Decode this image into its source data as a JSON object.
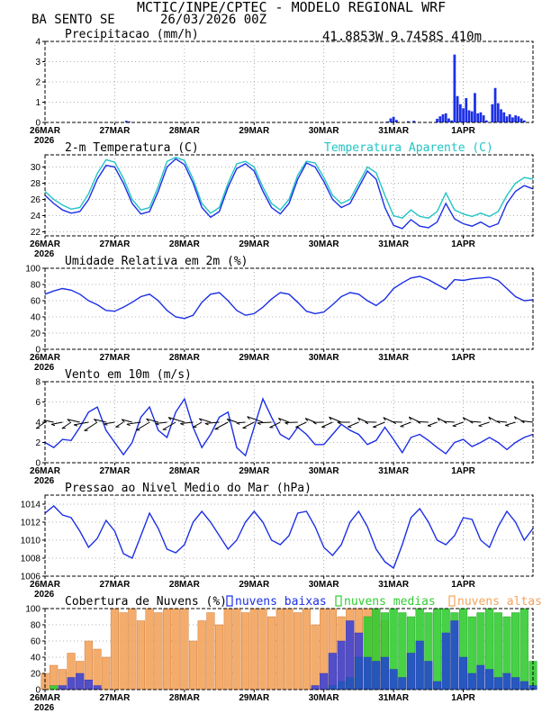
{
  "header": {
    "org_line": "MCTIC/INPE/CPTEC - MODELO REGIONAL WRF",
    "location": "BA SENTO SE",
    "run": "26/03/2026 00Z",
    "coords": "41.8853W 9.7458S 410m"
  },
  "colors": {
    "blue": "#1c2fe6",
    "cyan": "#22c4c4",
    "orange": "#f3a35c",
    "green": "#33cc33",
    "navy": "#2d2bbf",
    "header_orange": "#ee8822"
  },
  "x_axis": {
    "days": [
      "26MAR",
      "27MAR",
      "28MAR",
      "29MAR",
      "30MAR",
      "31MAR",
      "1APR"
    ],
    "year": "2026",
    "hours_total": 168
  },
  "chart_data": [
    {
      "id": "precip",
      "type": "bar",
      "title": "Precipitacao (mm/h)",
      "ylim": [
        0,
        4
      ],
      "yticks": [
        0,
        1,
        2,
        3,
        4
      ],
      "x_hours": [
        28,
        29,
        118,
        119,
        120,
        121,
        125,
        127,
        135,
        136,
        137,
        138,
        139,
        140,
        141,
        142,
        143,
        144,
        145,
        146,
        147,
        148,
        149,
        150,
        151,
        152,
        154,
        155,
        156,
        157,
        158,
        159,
        160,
        161,
        162,
        163,
        164,
        165
      ],
      "values": [
        0.08,
        0.05,
        0.05,
        0.2,
        0.28,
        0.12,
        0.06,
        0.08,
        0.18,
        0.3,
        0.4,
        0.45,
        0.2,
        0.1,
        3.35,
        1.3,
        0.9,
        0.7,
        1.2,
        0.6,
        0.55,
        1.45,
        0.45,
        0.5,
        0.35,
        0.1,
        0.9,
        1.7,
        0.95,
        0.65,
        0.5,
        0.3,
        0.4,
        0.25,
        0.35,
        0.3,
        0.2,
        0.1
      ]
    },
    {
      "id": "temp",
      "type": "line",
      "title": "2-m Temperatura (C)",
      "ylim": [
        21.5,
        31.5
      ],
      "yticks": [
        22,
        24,
        26,
        28,
        30
      ],
      "series": [
        {
          "name": "2-m Temperatura (C)",
          "x_hours": [
            0,
            3,
            6,
            9,
            12,
            15,
            18,
            21,
            24,
            27,
            30,
            33,
            36,
            39,
            42,
            45,
            48,
            51,
            54,
            57,
            60,
            63,
            66,
            69,
            72,
            75,
            78,
            81,
            84,
            87,
            90,
            93,
            96,
            99,
            102,
            105,
            108,
            111,
            114,
            117,
            120,
            123,
            126,
            129,
            132,
            135,
            138,
            141,
            144,
            147,
            150,
            153,
            156,
            159,
            162,
            165,
            168
          ],
          "values": [
            26.5,
            25.5,
            24.7,
            24.3,
            24.5,
            26.0,
            28.5,
            30.2,
            30.0,
            28.0,
            25.5,
            24.2,
            24.5,
            27.0,
            30.0,
            31.0,
            30.3,
            28.0,
            25.0,
            23.8,
            24.5,
            27.5,
            29.8,
            30.4,
            29.5,
            27.0,
            25.0,
            24.2,
            25.5,
            28.5,
            30.5,
            30.0,
            28.2,
            26.0,
            25.0,
            25.5,
            27.5,
            29.5,
            28.5,
            25.0,
            22.8,
            22.4,
            23.5,
            22.7,
            22.5,
            23.2,
            25.5,
            23.6,
            23.0,
            22.7,
            23.2,
            22.6,
            23.0,
            25.5,
            27.0,
            27.7,
            27.3
          ]
        },
        {
          "name": "Temperatura Aparente (C)",
          "x_hours": [
            0,
            3,
            6,
            9,
            12,
            15,
            18,
            21,
            24,
            27,
            30,
            33,
            36,
            39,
            42,
            45,
            48,
            51,
            54,
            57,
            60,
            63,
            66,
            69,
            72,
            75,
            78,
            81,
            84,
            87,
            90,
            93,
            96,
            99,
            102,
            105,
            108,
            111,
            114,
            117,
            120,
            123,
            126,
            129,
            132,
            135,
            138,
            141,
            144,
            147,
            150,
            153,
            156,
            159,
            162,
            165,
            168
          ],
          "values": [
            27.0,
            26.0,
            25.3,
            24.8,
            25.0,
            26.7,
            29.2,
            30.9,
            30.6,
            28.6,
            26.0,
            24.7,
            25.0,
            27.6,
            30.7,
            31.2,
            30.8,
            28.5,
            25.5,
            24.3,
            25.0,
            28.0,
            30.4,
            30.7,
            30.0,
            27.5,
            25.5,
            24.7,
            26.0,
            29.0,
            30.7,
            30.5,
            28.7,
            26.5,
            25.5,
            26.0,
            28.0,
            30.0,
            29.3,
            26.5,
            24.0,
            23.7,
            24.7,
            23.9,
            23.7,
            24.5,
            26.8,
            24.7,
            24.2,
            23.9,
            24.3,
            23.9,
            24.5,
            26.5,
            28.0,
            28.7,
            28.5
          ]
        }
      ]
    },
    {
      "id": "rh",
      "type": "line",
      "title": "Umidade Relativa em 2m (%)",
      "ylim": [
        0,
        100
      ],
      "yticks": [
        0,
        20,
        40,
        60,
        80,
        100
      ],
      "series": [
        {
          "name": "Umidade Relativa em 2m (%)",
          "x_hours": [
            0,
            3,
            6,
            9,
            12,
            15,
            18,
            21,
            24,
            27,
            30,
            33,
            36,
            39,
            42,
            45,
            48,
            51,
            54,
            57,
            60,
            63,
            66,
            69,
            72,
            75,
            78,
            81,
            84,
            87,
            90,
            93,
            96,
            99,
            102,
            105,
            108,
            111,
            114,
            117,
            120,
            123,
            126,
            129,
            132,
            135,
            138,
            141,
            144,
            147,
            150,
            153,
            156,
            159,
            162,
            165,
            168
          ],
          "values": [
            68,
            72,
            75,
            73,
            68,
            60,
            55,
            48,
            47,
            52,
            58,
            65,
            68,
            60,
            48,
            40,
            38,
            42,
            58,
            68,
            70,
            60,
            48,
            42,
            44,
            52,
            62,
            70,
            68,
            58,
            47,
            44,
            46,
            55,
            65,
            70,
            68,
            60,
            54,
            62,
            75,
            82,
            88,
            90,
            86,
            80,
            74,
            86,
            85,
            87,
            88,
            89,
            85,
            75,
            65,
            60,
            61
          ]
        }
      ]
    },
    {
      "id": "wind",
      "type": "line",
      "title": "Vento em 10m (m/s)",
      "ylim": [
        0,
        8
      ],
      "yticks": [
        0,
        2,
        4,
        6,
        8
      ],
      "barbs": "direction arrows drawn along y=4",
      "series": [
        {
          "name": "Vento em 10m (m/s)",
          "x_hours": [
            0,
            3,
            6,
            9,
            12,
            15,
            18,
            21,
            24,
            27,
            30,
            33,
            36,
            39,
            42,
            45,
            48,
            51,
            54,
            57,
            60,
            63,
            66,
            69,
            72,
            75,
            78,
            81,
            84,
            87,
            90,
            93,
            96,
            99,
            102,
            105,
            108,
            111,
            114,
            117,
            120,
            123,
            126,
            129,
            132,
            135,
            138,
            141,
            144,
            147,
            150,
            153,
            156,
            159,
            162,
            165,
            168
          ],
          "values": [
            2.0,
            1.5,
            2.3,
            2.2,
            3.5,
            5.0,
            5.5,
            3.2,
            2.0,
            0.8,
            2.0,
            4.5,
            5.5,
            3.2,
            2.5,
            5.0,
            6.3,
            3.5,
            1.5,
            2.8,
            4.5,
            5.0,
            1.5,
            0.7,
            3.5,
            6.3,
            4.5,
            2.8,
            2.3,
            3.5,
            2.8,
            1.8,
            1.8,
            2.8,
            3.8,
            3.2,
            2.8,
            1.8,
            2.2,
            3.5,
            2.3,
            1.0,
            2.5,
            2.8,
            2.2,
            1.5,
            0.9,
            2.0,
            2.3,
            1.6,
            2.0,
            2.5,
            2.0,
            1.3,
            2.0,
            2.5,
            2.8
          ]
        }
      ]
    },
    {
      "id": "slp",
      "type": "line",
      "title": "Pressao ao Nivel Medio do Mar (hPa)",
      "ylim": [
        1006,
        1015
      ],
      "yticks": [
        1006,
        1008,
        1010,
        1012,
        1014
      ],
      "series": [
        {
          "name": "Pressao ao Nivel Medio do Mar (hPa)",
          "x_hours": [
            0,
            3,
            6,
            9,
            12,
            15,
            18,
            21,
            24,
            27,
            30,
            33,
            36,
            39,
            42,
            45,
            48,
            51,
            54,
            57,
            60,
            63,
            66,
            69,
            72,
            75,
            78,
            81,
            84,
            87,
            90,
            93,
            96,
            99,
            102,
            105,
            108,
            111,
            114,
            117,
            120,
            123,
            126,
            129,
            132,
            135,
            138,
            141,
            144,
            147,
            150,
            153,
            156,
            159,
            162,
            165,
            168
          ],
          "values": [
            1013,
            1013.8,
            1012.8,
            1012.5,
            1011,
            1009.2,
            1010.2,
            1012.2,
            1011,
            1008.5,
            1008,
            1010.5,
            1013,
            1011.3,
            1009,
            1008.6,
            1009.5,
            1012,
            1013.2,
            1012,
            1010.5,
            1009,
            1010,
            1012,
            1013.2,
            1012,
            1010,
            1009.5,
            1010.5,
            1013,
            1013.2,
            1011.5,
            1009.2,
            1008.3,
            1009.5,
            1012,
            1013.2,
            1011.5,
            1009,
            1007.6,
            1006.9,
            1009.5,
            1012.5,
            1013.5,
            1012,
            1010,
            1009.5,
            1010.5,
            1012.5,
            1012.3,
            1010,
            1009.2,
            1011.5,
            1013.2,
            1012,
            1010,
            1011.3
          ]
        }
      ]
    },
    {
      "id": "clouds",
      "type": "bar",
      "title": "Cobertura de Nuvens (%)",
      "ylim": [
        0,
        100
      ],
      "yticks": [
        0,
        20,
        40,
        60,
        80,
        100
      ],
      "legend": [
        "nuvens baixas",
        "nuvens medias",
        "nuvens altas"
      ],
      "series": [
        {
          "name": "nuvens altas",
          "x_hours": [
            0,
            3,
            6,
            9,
            12,
            15,
            18,
            21,
            24,
            27,
            30,
            33,
            36,
            39,
            42,
            45,
            48,
            51,
            54,
            57,
            60,
            63,
            66,
            69,
            72,
            75,
            78,
            81,
            84,
            87,
            90,
            93,
            96,
            99,
            102,
            105,
            108,
            111,
            114,
            117
          ],
          "values": [
            20,
            30,
            25,
            45,
            35,
            60,
            50,
            40,
            100,
            95,
            100,
            85,
            100,
            95,
            100,
            100,
            100,
            60,
            85,
            95,
            80,
            100,
            100,
            95,
            100,
            100,
            90,
            100,
            100,
            95,
            100,
            80,
            100,
            100,
            90,
            100,
            100,
            100,
            100,
            85
          ]
        },
        {
          "name": "nuvens medias",
          "x_hours": [
            0,
            3,
            6,
            9,
            12,
            15,
            18,
            21,
            24,
            27,
            30,
            33,
            36,
            39,
            42,
            45,
            48,
            51,
            54,
            57,
            60,
            63,
            66,
            69,
            72,
            75,
            78,
            81,
            84,
            87,
            90,
            93,
            96,
            99,
            102,
            105,
            108,
            111,
            114,
            117,
            120,
            123,
            126,
            129,
            132,
            135,
            138,
            141,
            144,
            147,
            150,
            153,
            156,
            159,
            162,
            165,
            168
          ],
          "values": [
            0,
            5,
            0,
            0,
            0,
            0,
            0,
            0,
            0,
            0,
            0,
            0,
            0,
            0,
            0,
            0,
            0,
            0,
            0,
            0,
            0,
            0,
            0,
            0,
            0,
            0,
            0,
            0,
            0,
            0,
            0,
            0,
            0,
            5,
            10,
            15,
            40,
            90,
            100,
            95,
            100,
            95,
            90,
            100,
            95,
            100,
            100,
            95,
            100,
            90,
            95,
            100,
            95,
            90,
            95,
            100,
            35
          ]
        },
        {
          "name": "nuvens baixas",
          "x_hours": [
            0,
            3,
            6,
            9,
            12,
            15,
            18,
            21,
            24,
            27,
            30,
            33,
            36,
            39,
            42,
            45,
            48,
            51,
            54,
            57,
            60,
            63,
            66,
            69,
            72,
            75,
            78,
            81,
            84,
            87,
            90,
            93,
            96,
            99,
            102,
            105,
            108,
            111,
            114,
            117,
            120,
            123,
            126,
            129,
            132,
            135,
            138,
            141,
            144,
            147,
            150,
            153,
            156,
            159,
            162,
            165,
            168
          ],
          "values": [
            0,
            0,
            5,
            15,
            20,
            12,
            5,
            0,
            0,
            0,
            0,
            0,
            0,
            0,
            0,
            0,
            0,
            0,
            0,
            0,
            0,
            0,
            0,
            0,
            0,
            0,
            0,
            0,
            0,
            0,
            0,
            5,
            20,
            45,
            60,
            85,
            70,
            40,
            35,
            40,
            25,
            15,
            45,
            60,
            35,
            10,
            70,
            85,
            40,
            20,
            30,
            25,
            15,
            20,
            15,
            10,
            5
          ]
        }
      ]
    }
  ]
}
